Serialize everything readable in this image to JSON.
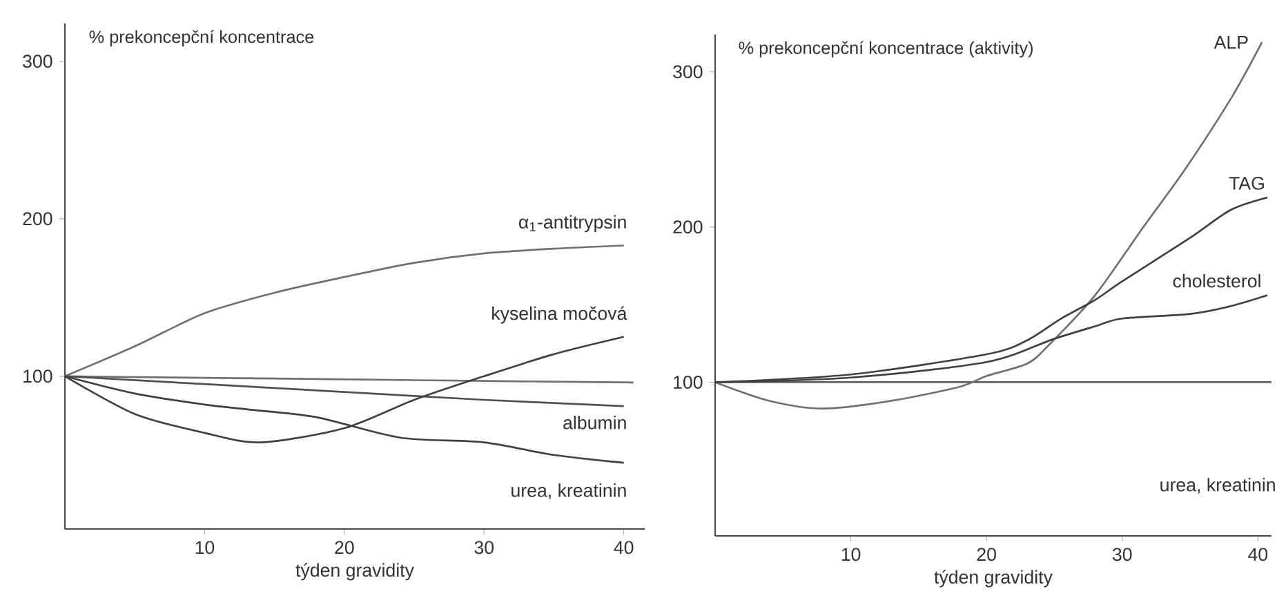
{
  "chart_data": [
    {
      "type": "line",
      "ylabel": "% prekoncepční koncentrace",
      "xlabel": "týden gravidity",
      "xlim": [
        0,
        41.5
      ],
      "ylim": [
        3,
        324
      ],
      "xticks": [
        10,
        20,
        30,
        40
      ],
      "yticks": [
        100,
        200,
        300
      ],
      "series": [
        {
          "name": "α$_{1}$-antitrypsin",
          "color": "#707070",
          "x": [
            0,
            5,
            10,
            15,
            20,
            25,
            30,
            35,
            40
          ],
          "values": [
            100,
            119,
            140,
            153,
            163,
            172,
            178,
            181,
            183
          ]
        },
        {
          "color": "#707070",
          "x": [
            0,
            10,
            20,
            30,
            40.7
          ],
          "values": [
            100,
            99,
            98,
            97,
            96
          ]
        },
        {
          "name": "albumin",
          "color": "#505050",
          "x": [
            0,
            10,
            20,
            30,
            40
          ],
          "values": [
            100,
            95,
            90,
            85,
            81
          ]
        },
        {
          "name": "urea, kreatinin",
          "color": "#404040",
          "x": [
            0,
            5,
            10,
            13,
            18,
            24,
            30,
            35,
            40
          ],
          "values": [
            100,
            89,
            82,
            79,
            74,
            61,
            58,
            50,
            45
          ]
        },
        {
          "name": "kyselina močová",
          "color": "#404040",
          "x": [
            0,
            5,
            10,
            14,
            20,
            25,
            30,
            35,
            40
          ],
          "values": [
            100,
            76,
            64,
            58,
            67,
            85,
            100,
            114,
            125
          ]
        }
      ]
    },
    {
      "type": "line",
      "ylabel": "% prekoncepční koncentrace (aktivity)",
      "xlabel": "týden gravidity",
      "xlim": [
        0,
        41
      ],
      "ylim": [
        1,
        324
      ],
      "xticks": [
        10,
        20,
        30,
        40
      ],
      "yticks": [
        100,
        200,
        300
      ],
      "series": [
        {
          "color": "#606060",
          "x": [
            0,
            41
          ],
          "values": [
            100,
            100
          ]
        },
        {
          "name": "ALP",
          "color": "#707070",
          "x": [
            0,
            4,
            8,
            13,
            18,
            20,
            23,
            24.6,
            28,
            31.4,
            34.7,
            38.1,
            40.3
          ],
          "values": [
            100,
            88,
            83,
            88,
            97,
            104,
            112,
            124,
            156,
            198,
            238,
            284,
            319
          ]
        },
        {
          "name": "TAG",
          "color": "#404040",
          "x": [
            0,
            10,
            20,
            23,
            25.5,
            28,
            30,
            35,
            38,
            40.7
          ],
          "values": [
            100,
            105,
            118,
            127,
            141,
            153,
            165,
            193,
            211,
            219
          ]
        },
        {
          "name": "cholesterol",
          "color": "#404040",
          "x": [
            0,
            10,
            20,
            25,
            28,
            30,
            35,
            38,
            40.7
          ],
          "values": [
            100,
            103,
            113,
            128,
            136,
            141,
            144,
            149,
            156
          ]
        }
      ],
      "annotations": [
        "urea, kreatinin"
      ]
    }
  ]
}
